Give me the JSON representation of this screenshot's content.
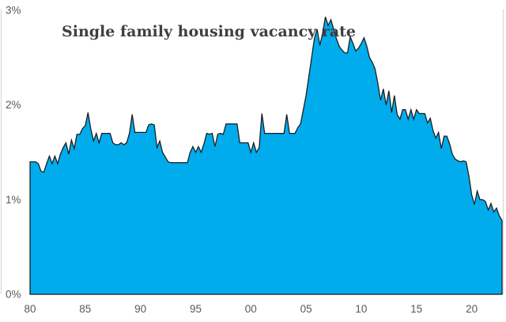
{
  "title": "Single family housing vacancy rate",
  "chart_data": {
    "type": "area",
    "series_name": "Single family housing vacancy rate",
    "frequency": "quarterly",
    "x_start_year": 1980,
    "x_end_year": 2022,
    "ylim": [
      0,
      3
    ],
    "grid": "off",
    "legend": "none",
    "y_ticks": [
      {
        "label": "3%",
        "value": 3
      },
      {
        "label": "2%",
        "value": 2
      },
      {
        "label": "1%",
        "value": 1
      },
      {
        "label": "0%",
        "value": 0
      }
    ],
    "x_ticks": [
      {
        "label": "80",
        "year": 1980
      },
      {
        "label": "85",
        "year": 1985
      },
      {
        "label": "90",
        "year": 1990
      },
      {
        "label": "95",
        "year": 1995
      },
      {
        "label": "00",
        "year": 2000
      },
      {
        "label": "05",
        "year": 2005
      },
      {
        "label": "10",
        "year": 2010
      },
      {
        "label": "15",
        "year": 2015
      },
      {
        "label": "20",
        "year": 2020
      }
    ],
    "values": [
      1.4,
      1.4,
      1.4,
      1.38,
      1.3,
      1.29,
      1.38,
      1.46,
      1.38,
      1.46,
      1.38,
      1.48,
      1.55,
      1.6,
      1.48,
      1.63,
      1.54,
      1.69,
      1.69,
      1.75,
      1.78,
      1.92,
      1.75,
      1.62,
      1.7,
      1.6,
      1.7,
      1.7,
      1.7,
      1.7,
      1.6,
      1.58,
      1.58,
      1.6,
      1.58,
      1.6,
      1.7,
      1.9,
      1.71,
      1.71,
      1.71,
      1.71,
      1.71,
      1.79,
      1.8,
      1.79,
      1.55,
      1.62,
      1.5,
      1.45,
      1.4,
      1.39,
      1.39,
      1.39,
      1.39,
      1.39,
      1.39,
      1.39,
      1.5,
      1.56,
      1.5,
      1.56,
      1.5,
      1.59,
      1.7,
      1.69,
      1.7,
      1.56,
      1.69,
      1.7,
      1.69,
      1.8,
      1.8,
      1.8,
      1.8,
      1.8,
      1.6,
      1.6,
      1.6,
      1.6,
      1.5,
      1.6,
      1.5,
      1.55,
      1.91,
      1.7,
      1.7,
      1.7,
      1.7,
      1.7,
      1.7,
      1.7,
      1.7,
      1.9,
      1.7,
      1.7,
      1.7,
      1.76,
      1.8,
      1.95,
      2.1,
      2.3,
      2.5,
      2.7,
      2.8,
      2.63,
      2.76,
      2.93,
      2.84,
      2.9,
      2.8,
      2.7,
      2.62,
      2.58,
      2.55,
      2.55,
      2.72,
      2.65,
      2.57,
      2.6,
      2.65,
      2.71,
      2.62,
      2.5,
      2.45,
      2.38,
      2.23,
      2.05,
      2.17,
      2.0,
      2.15,
      1.92,
      2.1,
      1.9,
      1.85,
      1.95,
      1.95,
      1.85,
      1.95,
      1.85,
      1.95,
      1.91,
      1.91,
      1.91,
      1.81,
      1.86,
      1.73,
      1.65,
      1.71,
      1.54,
      1.67,
      1.67,
      1.59,
      1.48,
      1.43,
      1.41,
      1.4,
      1.41,
      1.4,
      1.25,
      1.05,
      0.95,
      1.09,
      1.0,
      1.0,
      0.98,
      0.89,
      0.96,
      0.87,
      0.91,
      0.83,
      0.78
    ],
    "colors": {
      "fill": "#00ACEC",
      "outline": "#1a1a1a",
      "axis_line": "#d9d9d9",
      "tick_text": "#595959",
      "title_text": "#3f3f3f"
    }
  }
}
